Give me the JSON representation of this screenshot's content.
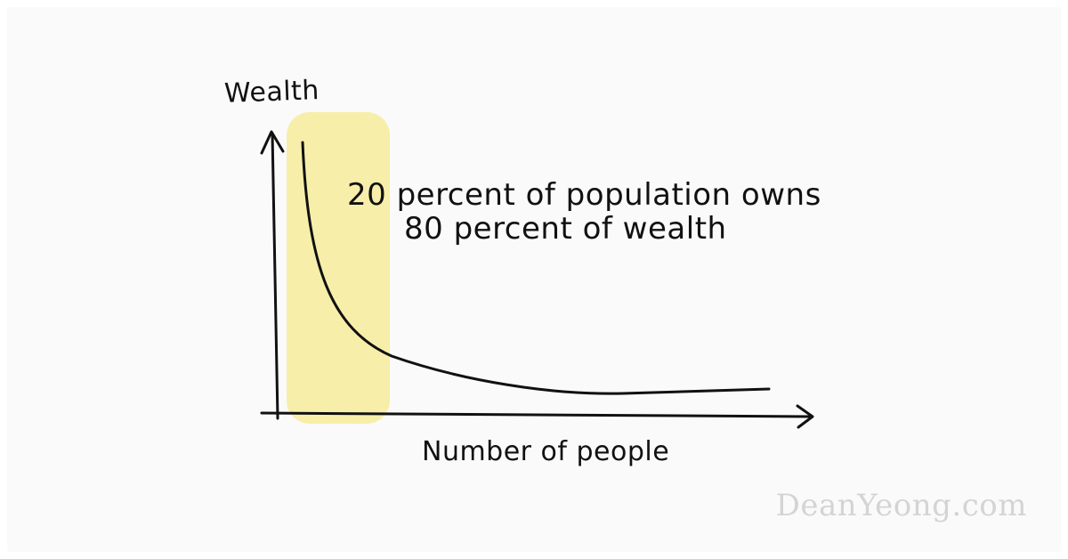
{
  "diagram": {
    "y_axis_label": "Wealth",
    "x_axis_label": "Number of people",
    "annotation_line1": "20 percent of population owns",
    "annotation_line2": "80 percent of wealth",
    "highlight_color": "#f7eeaa",
    "curve_color": "#111111"
  },
  "watermark": "DeanYeong.com"
}
